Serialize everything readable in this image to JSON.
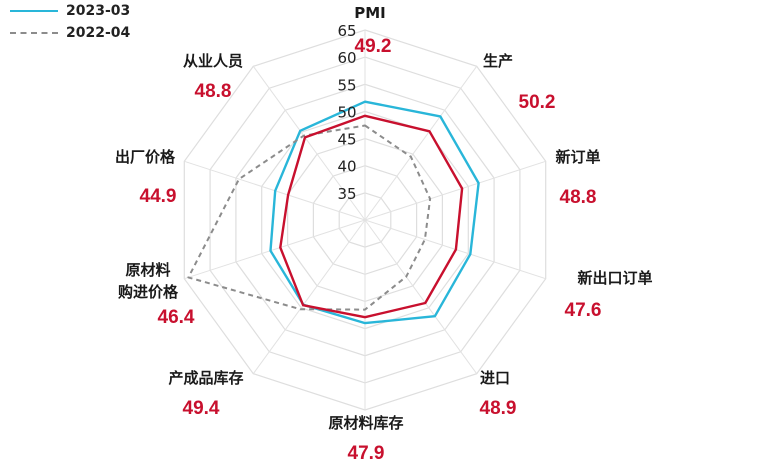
{
  "legend": [
    {
      "name": "2023-03",
      "color": "#29b6d9",
      "style": "solid"
    },
    {
      "name": "2022-04",
      "color": "#8c8c8c",
      "style": "dashed"
    }
  ],
  "chart_data": {
    "type": "radar",
    "r_ticks": [
      35,
      40,
      45,
      50,
      55,
      60,
      65
    ],
    "r_range": [
      30,
      65
    ],
    "categories": [
      {
        "label_lines": [
          "PMI"
        ],
        "value_label": "49.2"
      },
      {
        "label_lines": [
          "生产"
        ],
        "value_label": "50.2"
      },
      {
        "label_lines": [
          "新订单"
        ],
        "value_label": "48.8"
      },
      {
        "label_lines": [
          "新出口订单"
        ],
        "value_label": "47.6"
      },
      {
        "label_lines": [
          "进口"
        ],
        "value_label": "48.9"
      },
      {
        "label_lines": [
          "原材料库存"
        ],
        "value_label": "47.9"
      },
      {
        "label_lines": [
          "产成品库存"
        ],
        "value_label": "49.4"
      },
      {
        "label_lines": [
          "原材料",
          "购进价格"
        ],
        "value_label": "46.4"
      },
      {
        "label_lines": [
          "出厂价格"
        ],
        "value_label": "44.9"
      },
      {
        "label_lines": [
          "从业人员"
        ],
        "value_label": "48.8"
      }
    ],
    "series": [
      {
        "name": "2023-03",
        "color": "#29b6d9",
        "dash": false,
        "values": [
          51.8,
          53.6,
          52.0,
          50.4,
          51.9,
          49.0,
          49.3,
          48.3,
          47.4,
          50.3
        ]
      },
      {
        "name": "2022-04",
        "color": "#8c8c8c",
        "dash": true,
        "values": [
          47.4,
          44.4,
          42.6,
          41.6,
          42.9,
          46.5,
          50.3,
          64.2,
          54.4,
          49.2
        ]
      },
      {
        "name": "",
        "color": "#c8102e",
        "dash": false,
        "values": [
          49.2,
          50.2,
          48.8,
          47.6,
          48.9,
          47.9,
          49.4,
          46.4,
          44.9,
          48.8
        ]
      }
    ],
    "title": "",
    "grid": true,
    "legend_position": "top-left"
  }
}
